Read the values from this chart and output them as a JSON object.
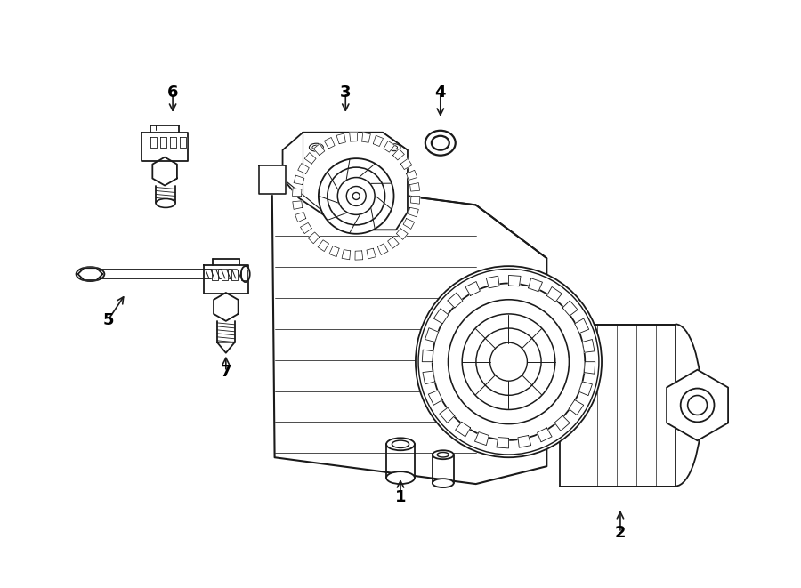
{
  "bg_color": "#ffffff",
  "line_color": "#1a1a1a",
  "lw": 1.3,
  "fig_width": 9.0,
  "fig_height": 6.61,
  "dpi": 100
}
